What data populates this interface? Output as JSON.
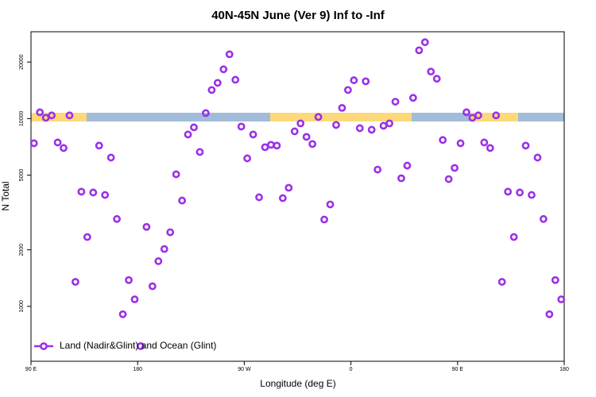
{
  "chart_data": {
    "type": "scatter",
    "title": "40N-45N June (Ver 9)   Inf to -Inf",
    "x_label": "Longitude (deg E)",
    "y_label": "N Total",
    "log_y": true,
    "legend": "bottom-left",
    "xlim": [
      90,
      540
    ],
    "ylim": [
      510,
      29000
    ],
    "xticks": [
      {
        "value": 90,
        "label": "90 E"
      },
      {
        "value": 180,
        "label": "180"
      },
      {
        "value": 270,
        "label": "90 W"
      },
      {
        "value": 360,
        "label": "0"
      },
      {
        "value": 450,
        "label": "90 E"
      },
      {
        "value": 540,
        "label": "180"
      }
    ],
    "yticks": [
      1000,
      2000,
      5000,
      10000,
      20000
    ],
    "x": [
      92.5,
      97.5,
      102.5,
      107.5,
      112.5,
      117.5,
      122.5,
      127.5,
      132.5,
      137.5,
      142.5,
      147.5,
      152.5,
      157.5,
      162.5,
      167.5,
      172.5,
      177.5,
      182.5,
      187.5,
      192.5,
      197.5,
      202.5,
      207.5,
      212.5,
      217.5,
      222.5,
      227.5,
      232.5,
      237.5,
      242.5,
      247.5,
      252.5,
      257.5,
      262.5,
      267.5,
      272.5,
      277.5,
      282.5,
      287.5,
      292.5,
      297.5,
      302.5,
      307.5,
      312.5,
      317.5,
      322.5,
      327.5,
      332.5,
      337.5,
      342.5,
      347.5,
      352.5,
      357.5,
      362.5,
      367.5,
      372.5,
      377.5,
      382.5,
      387.5,
      392.5,
      397.5,
      402.5,
      407.5,
      412.5,
      417.5,
      422.5,
      427.5,
      432.5,
      437.5,
      442.5,
      447.5,
      452.5,
      457.5,
      462.5,
      467.5,
      472.5,
      477.5,
      482.5,
      487.5,
      492.5,
      497.5,
      502.5,
      507.5,
      512.5,
      517.5,
      522.5,
      527.5,
      532.5,
      537.5
    ],
    "series": [
      {
        "name": "Land (Nadir&Glint) and Ocean (Glint)",
        "color": "#9b30e8",
        "values": [
          7390,
          10800,
          10100,
          10400,
          7460,
          6970,
          10400,
          1350,
          4080,
          2340,
          4040,
          7180,
          3920,
          6200,
          2920,
          908,
          1380,
          1090,
          614,
          2650,
          1280,
          1740,
          2020,
          2480,
          5050,
          3660,
          8230,
          8980,
          6640,
          10700,
          14200,
          15500,
          18300,
          22000,
          16100,
          9070,
          6140,
          8230,
          3810,
          7040,
          7250,
          7180,
          3770,
          4280,
          8550,
          9430,
          7990,
          7320,
          10200,
          2900,
          3490,
          9250,
          11400,
          14200,
          16000,
          8890,
          15800,
          8720,
          5350,
          9160,
          9430,
          12300,
          4810,
          5620,
          12900,
          23100,
          25500,
          17800,
          16300,
          7690,
          4760,
          5460,
          7390,
          10800,
          10100,
          10400,
          7460,
          6970,
          10400,
          1350,
          4080,
          2340,
          4040,
          7180,
          3920,
          6200,
          2920,
          908,
          1380,
          1090
        ]
      }
    ]
  }
}
